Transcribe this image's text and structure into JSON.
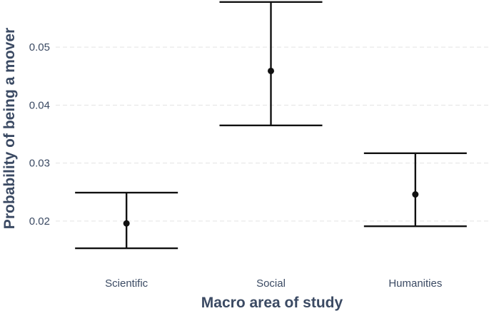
{
  "chart_data": {
    "type": "errorbar",
    "xlabel": "Macro area of study",
    "ylabel": "Probability of being a mover",
    "categories": [
      "Scientific",
      "Social",
      "Humanities"
    ],
    "values": [
      0.0196,
      0.0459,
      0.0246
    ],
    "lower": [
      0.0153,
      0.0365,
      0.0191
    ],
    "upper": [
      0.0249,
      0.0578,
      0.0317
    ],
    "yticks": [
      0.02,
      0.03,
      0.04,
      0.05
    ],
    "ytick_labels": [
      "0.02",
      "0.03",
      "0.04",
      "0.05"
    ],
    "ylim": [
      0.0126,
      0.0579
    ],
    "grid": true,
    "colors": {
      "mark": "#111111",
      "text": "#3b4a63",
      "grid": "#e3e3e3"
    }
  }
}
